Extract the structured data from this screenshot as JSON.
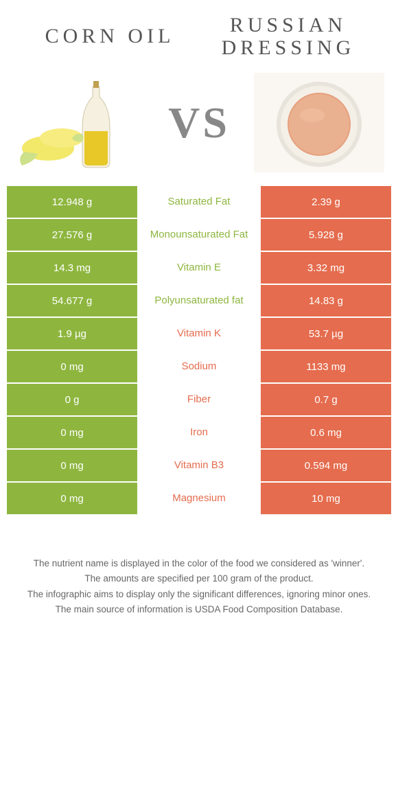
{
  "colors": {
    "green": "#8eb63f",
    "orange": "#e56c4e",
    "text": "#555555",
    "footer": "#666666"
  },
  "left": {
    "title": "CORN OIL"
  },
  "right": {
    "title_line1": "RUSSIAN",
    "title_line2": "DRESSING"
  },
  "vs": "VS",
  "rows": [
    {
      "left": "12.948 g",
      "label": "Saturated Fat",
      "right": "2.39 g",
      "winner": "left"
    },
    {
      "left": "27.576 g",
      "label": "Monounsaturated Fat",
      "right": "5.928 g",
      "winner": "left"
    },
    {
      "left": "14.3 mg",
      "label": "Vitamin E",
      "right": "3.32 mg",
      "winner": "left"
    },
    {
      "left": "54.677 g",
      "label": "Polyunsaturated fat",
      "right": "14.83 g",
      "winner": "left"
    },
    {
      "left": "1.9 µg",
      "label": "Vitamin K",
      "right": "53.7 µg",
      "winner": "right"
    },
    {
      "left": "0 mg",
      "label": "Sodium",
      "right": "1133 mg",
      "winner": "right"
    },
    {
      "left": "0 g",
      "label": "Fiber",
      "right": "0.7 g",
      "winner": "right"
    },
    {
      "left": "0 mg",
      "label": "Iron",
      "right": "0.6 mg",
      "winner": "right"
    },
    {
      "left": "0 mg",
      "label": "Vitamin B3",
      "right": "0.594 mg",
      "winner": "right"
    },
    {
      "left": "0 mg",
      "label": "Magnesium",
      "right": "10 mg",
      "winner": "right"
    }
  ],
  "footer": {
    "line1": "The nutrient name is displayed in the color of the food we considered as 'winner'.",
    "line2": "The amounts are specified per 100 gram of the product.",
    "line3": "The infographic aims to display only the significant differences, ignoring minor ones.",
    "line4": "The main source of information is USDA Food Composition Database."
  }
}
